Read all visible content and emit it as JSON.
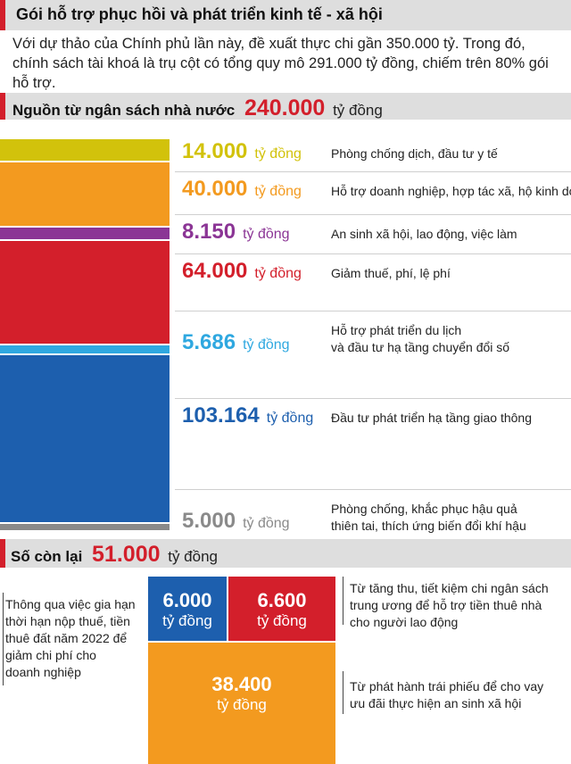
{
  "header": {
    "title": "Gói hỗ trợ phục hồi và phát triển kinh tế - xã hội",
    "intro": "Với dự thảo của Chính phủ lần này, đề xuất thực chi gần 350.000 tỷ. Trong đó, chính sách tài khoá là trụ cột có tổng quy mô 291.000 tỷ đồng, chiếm trên 80% gói hỗ trợ."
  },
  "section1": {
    "label": "Nguồn từ ngân sách nhà nước",
    "amount": "240.000",
    "unit": "tỷ đồng"
  },
  "section2": {
    "label": "Số còn lại",
    "amount": "51.000",
    "unit": "tỷ đồng"
  },
  "chart_data": [
    {
      "type": "bar",
      "title": "Nguồn từ ngân sách nhà nước 240.000 tỷ đồng",
      "unit": "tỷ đồng",
      "categories": [
        "Phòng chống dịch, đầu tư y tế",
        "Hỗ trợ doanh nghiệp, hợp tác xã, hộ kinh doanh",
        "An sinh xã hội, lao động, việc làm",
        "Giảm thuế, phí, lệ phí",
        "Hỗ trợ phát triển du lịch và đầu tư hạ tầng chuyển đổi số",
        "Đầu tư phát triển hạ tầng giao thông",
        "Phòng chống, khắc phục hậu quả thiên tai, thích ứng biến đổi khí hậu"
      ],
      "labels": [
        "14.000",
        "40.000",
        "8.150",
        "64.000",
        "5.686",
        "103.164",
        "5.000"
      ],
      "values": [
        14000,
        40000,
        8150,
        64000,
        5686,
        103164,
        5000
      ],
      "colors": [
        "#d2c20b",
        "#f39a1f",
        "#8b3595",
        "#d31f2b",
        "#2fa8e0",
        "#1d5fae",
        "#8a8a8a"
      ],
      "desc_lines": [
        [
          "Phòng chống dịch, đầu tư y tế"
        ],
        [
          "Hỗ trợ doanh nghiệp, hợp tác xã, hộ kinh doanh"
        ],
        [
          "An sinh xã hội, lao động, việc làm"
        ],
        [
          "Giảm thuế, phí, lệ phí"
        ],
        [
          "Hỗ trợ phát triển du lịch",
          "và đầu tư hạ tầng chuyển đổi số"
        ],
        [
          "Đầu tư phát triển hạ tầng giao thông"
        ],
        [
          "Phòng chống, khắc phục hậu quả",
          "thiên tai, thích ứng biến đổi khí hậu"
        ]
      ]
    },
    {
      "type": "bar",
      "title": "Số còn lại 51.000 tỷ đồng",
      "unit": "tỷ đồng",
      "categories": [
        "Thông qua việc gia hạn thời hạn nộp thuế, tiền thuê đất năm 2022 để giảm chi phí cho doanh nghiệp",
        "Từ tăng thu, tiết kiệm chi ngân sách trung ương để hỗ trợ tiền thuê nhà cho người lao động",
        "Từ phát hành trái phiếu để cho vay ưu đãi thực hiện an sinh xã hội"
      ],
      "labels": [
        "6.000",
        "6.600",
        "38.400"
      ],
      "values": [
        6000,
        6600,
        38400
      ],
      "colors": [
        "#1d5fae",
        "#d31f2b",
        "#f39a1f"
      ],
      "desc_lines": [
        [
          "Thông qua việc gia hạn",
          "thời hạn nộp thuế, tiền",
          "thuê đất năm 2022 để",
          "giảm chi phí cho",
          "doanh nghiệp"
        ],
        [
          "Từ tăng thu, tiết kiệm chi ngân sách",
          "trung ương để hỗ trợ tiền thuê nhà",
          "cho người lao động"
        ],
        [
          "Từ phát hành trái phiếu để cho vay",
          "ưu đãi thực hiện an sinh xã hội"
        ]
      ]
    }
  ]
}
